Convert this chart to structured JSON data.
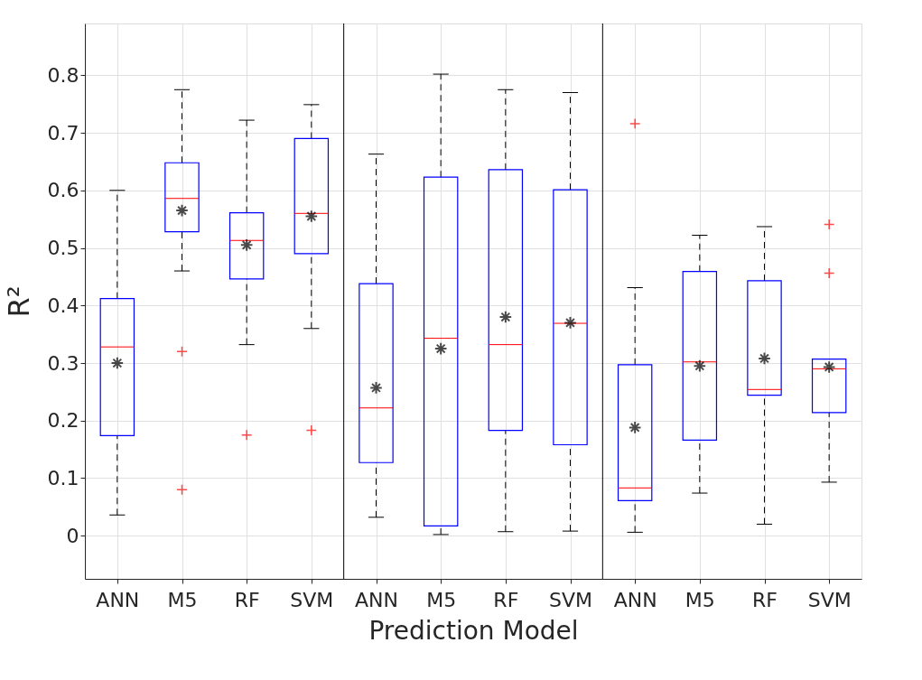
{
  "chart_data": {
    "type": "box",
    "xlabel": "Prediction Model",
    "ylabel": "R²",
    "categories": [
      "ANN",
      "M5",
      "RF",
      "SVM",
      "ANN",
      "M5",
      "RF",
      "SVM",
      "ANN",
      "M5",
      "RF",
      "SVM"
    ],
    "color": "#0000ff",
    "boxes": [
      {
        "low": 0.036,
        "q1": 0.174,
        "median": 0.328,
        "q3": 0.412,
        "high": 0.6,
        "mean": 0.3
      },
      {
        "low": 0.46,
        "q1": 0.528,
        "median": 0.586,
        "q3": 0.648,
        "high": 0.775,
        "mean": 0.565,
        "outliers": [
          0.32,
          0.08
        ]
      },
      {
        "low": 0.332,
        "q1": 0.446,
        "median": 0.513,
        "q3": 0.561,
        "high": 0.722,
        "mean": 0.505,
        "outliers": [
          0.175
        ]
      },
      {
        "low": 0.36,
        "q1": 0.49,
        "median": 0.56,
        "q3": 0.69,
        "high": 0.749,
        "mean": 0.555,
        "outliers": [
          0.183
        ]
      },
      {
        "low": 0.032,
        "q1": 0.127,
        "median": 0.222,
        "q3": 0.438,
        "high": 0.663,
        "mean": 0.257
      },
      {
        "low": 0.002,
        "q1": 0.017,
        "median": 0.343,
        "q3": 0.623,
        "high": 0.802,
        "mean": 0.325
      },
      {
        "low": 0.007,
        "q1": 0.183,
        "median": 0.332,
        "q3": 0.636,
        "high": 0.775,
        "mean": 0.38
      },
      {
        "low": 0.008,
        "q1": 0.158,
        "median": 0.369,
        "q3": 0.601,
        "high": 0.77,
        "mean": 0.37
      },
      {
        "low": 0.006,
        "q1": 0.061,
        "median": 0.083,
        "q3": 0.297,
        "high": 0.431,
        "mean": 0.188,
        "outliers": [
          0.716
        ]
      },
      {
        "low": 0.074,
        "q1": 0.166,
        "median": 0.302,
        "q3": 0.459,
        "high": 0.522,
        "mean": 0.295
      },
      {
        "low": 0.02,
        "q1": 0.244,
        "median": 0.254,
        "q3": 0.443,
        "high": 0.537,
        "mean": 0.308
      },
      {
        "low": 0.093,
        "q1": 0.214,
        "median": 0.29,
        "q3": 0.307,
        "high": 0.307,
        "mean": 0.293,
        "outliers": [
          0.541,
          0.456
        ]
      }
    ],
    "ylim": [
      -0.075,
      0.89
    ],
    "yticks": [
      0,
      0.1,
      0.2,
      0.3,
      0.4,
      0.5,
      0.6,
      0.7,
      0.8
    ],
    "grid": true
  }
}
